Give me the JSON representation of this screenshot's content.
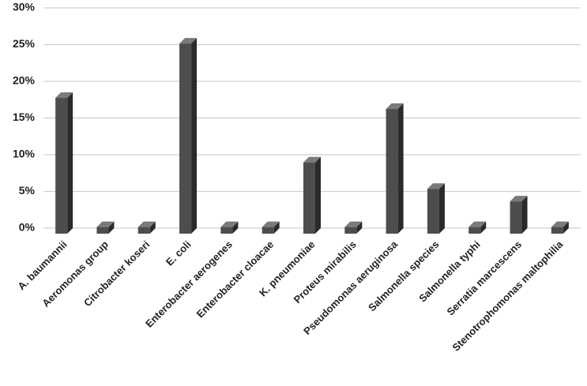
{
  "chart_data": {
    "type": "bar3d",
    "categories": [
      "A. baumannii",
      "Aeromonas group",
      "Citrobacter koseri",
      "E. coli",
      "Enterobacter aerogenes",
      "Enterobacter cloacae",
      "K. pneumoniae",
      "Proteus mirabilis",
      "Pseudomonas aeruginosa",
      "Salmonella species",
      "Salmonella typhi",
      "Serratia marcescens",
      "Stenotrophomonas maltophilia"
    ],
    "values": [
      18.5,
      0.9,
      0.9,
      25.9,
      0.9,
      0.9,
      9.7,
      0.9,
      17,
      6.1,
      0.9,
      4.4,
      0.9
    ],
    "color": "#4d4d4d",
    "ylim": [
      0,
      30
    ],
    "yticks": [
      {
        "value": 0,
        "label": "0%"
      },
      {
        "value": 5,
        "label": "5%"
      },
      {
        "value": 10,
        "label": "10%"
      },
      {
        "value": 15,
        "label": "15%"
      },
      {
        "value": 20,
        "label": "20%"
      },
      {
        "value": 25,
        "label": "25%"
      },
      {
        "value": 30,
        "label": "30%"
      }
    ],
    "grid": true
  }
}
